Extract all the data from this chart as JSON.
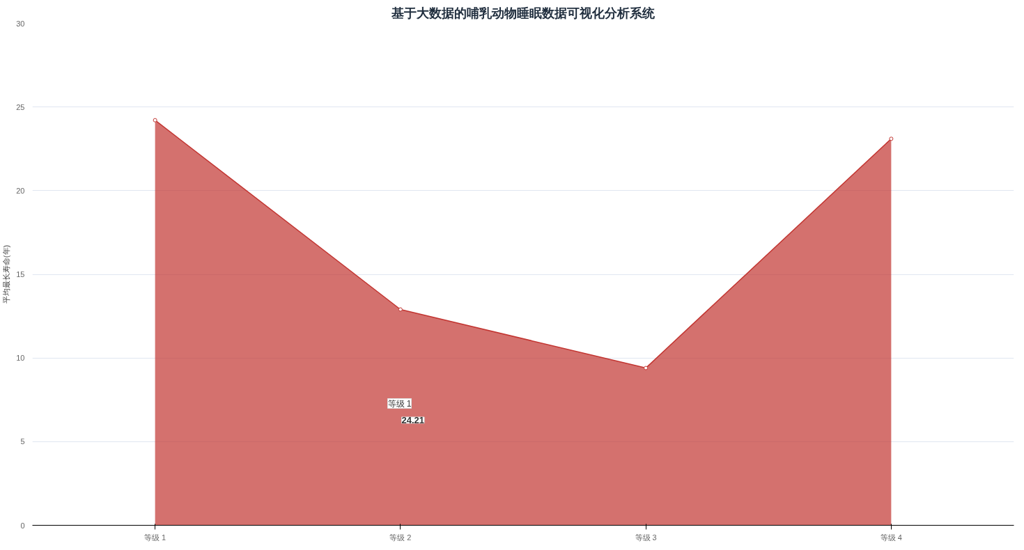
{
  "chart_data": {
    "type": "area",
    "title": "基于大数据的哺乳动物睡眠数据可视化分析系统",
    "ylabel": "平均最长寿命(年)",
    "categories": [
      "等级 1",
      "等级 2",
      "等级 3",
      "等级 4"
    ],
    "series": [
      {
        "color": "#c23531",
        "values": [
          24.21,
          12.9,
          9.4,
          23.1
        ]
      }
    ],
    "ylim": [
      0,
      30
    ],
    "yticks": [
      0,
      5,
      10,
      15,
      20,
      25,
      30
    ],
    "grid": "y",
    "marker": "circle",
    "line_style": "solid",
    "annotations": [
      "等级 1",
      "24.21"
    ]
  }
}
